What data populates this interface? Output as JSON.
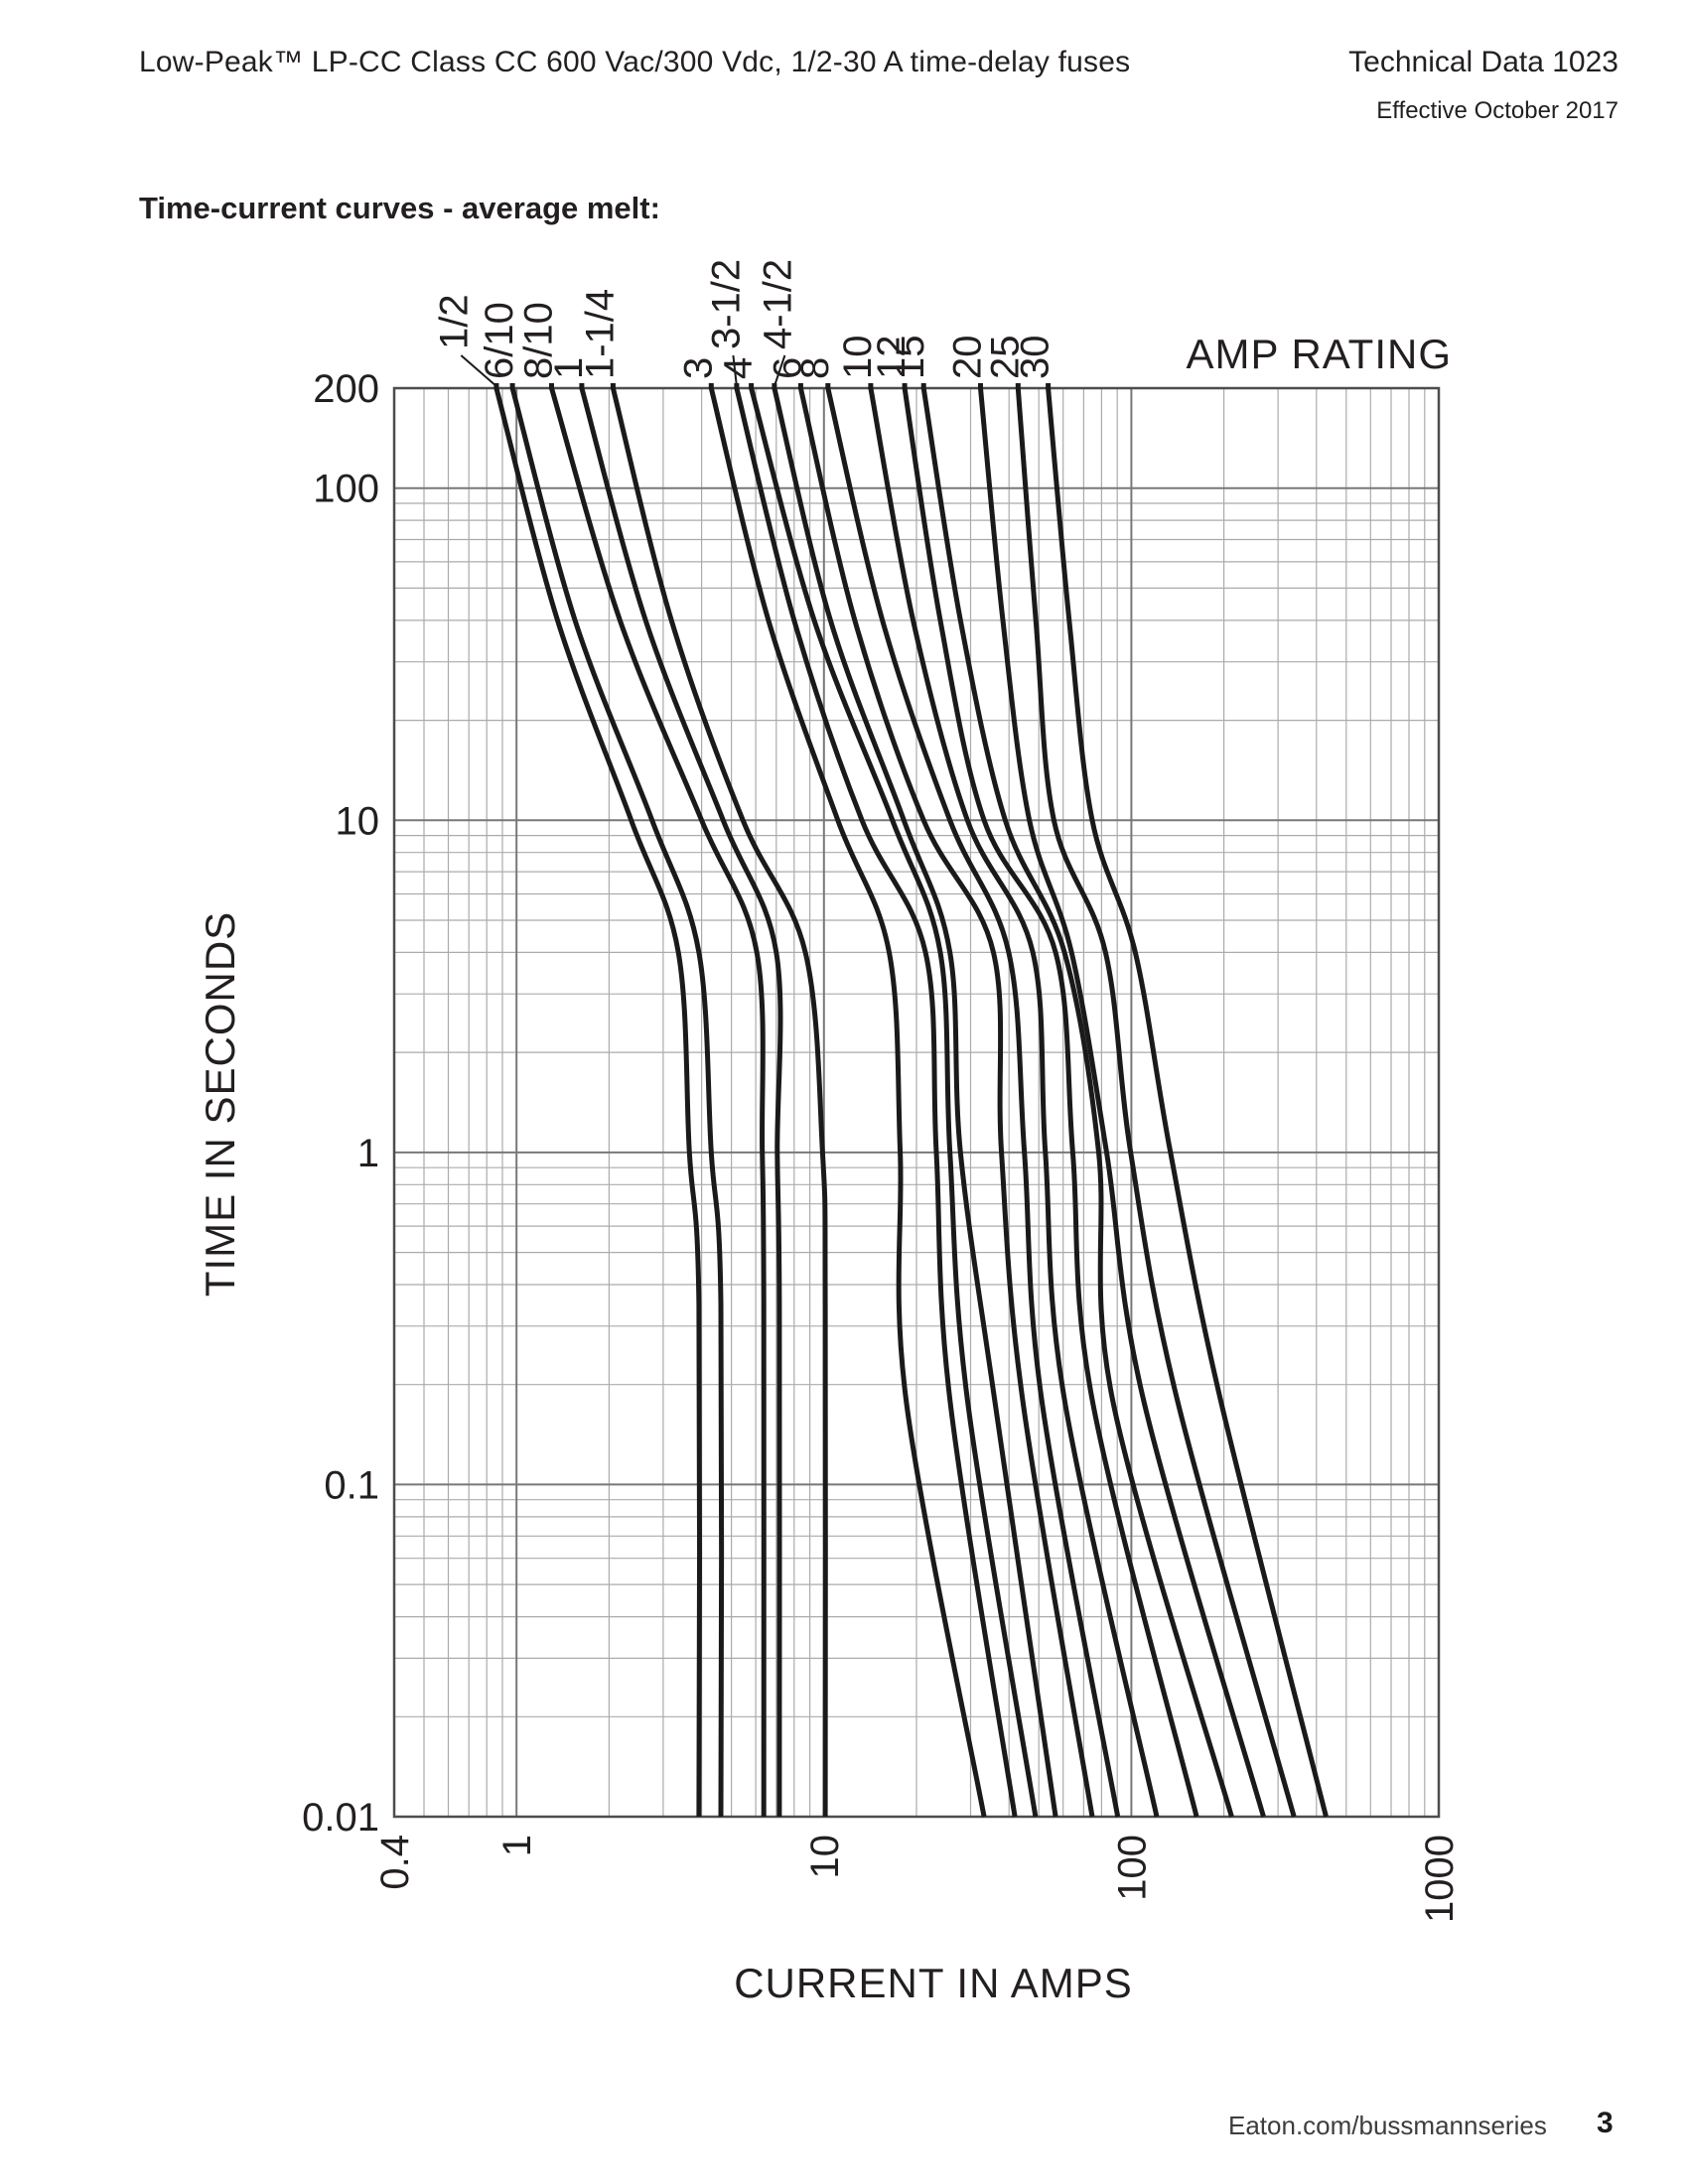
{
  "page": {
    "header_left": "Low-Peak™ LP-CC Class CC 600 Vac/300 Vdc, 1/2-30 A time-delay fuses",
    "header_right_line1": "Technical Data 1023",
    "header_right_line2": "Effective October 2017",
    "section_title": "Time-current curves - average melt:",
    "footer_link": "Eaton.com/bussmannseries",
    "footer_page": "3"
  },
  "colors": {
    "curve": "#1a1a1a",
    "grid_minor": "#ababab",
    "grid_major": "#787878",
    "frame": "#4d4d4d",
    "text": "#231f20"
  },
  "chart_data": {
    "type": "line",
    "title": "Time-current curves - average melt",
    "xlabel": "CURRENT IN AMPS",
    "ylabel": "TIME IN SECONDS",
    "legend_title": "AMP RATING",
    "x_scale": "log",
    "y_scale": "log",
    "xlim": [
      0.4,
      1000
    ],
    "ylim": [
      0.01,
      200
    ],
    "grid": true,
    "x_ticks": [
      0.4,
      1,
      10,
      100,
      1000
    ],
    "x_tick_labels": [
      "0.4",
      "1",
      "10",
      "100",
      "1000"
    ],
    "y_ticks": [
      200,
      100,
      10,
      1,
      0.1,
      0.01
    ],
    "y_tick_labels": [
      "200",
      "100",
      "10",
      "1",
      "0.1",
      "0.01"
    ],
    "series": [
      {
        "name": "1/2",
        "points": [
          [
            0.86,
            200
          ],
          [
            1.36,
            40
          ],
          [
            2.36,
            10
          ],
          [
            3.36,
            4
          ],
          [
            3.65,
            1
          ],
          [
            3.92,
            0.35
          ],
          [
            3.92,
            0.01
          ]
        ]
      },
      {
        "name": "6/10",
        "points": [
          [
            0.97,
            200
          ],
          [
            1.55,
            40
          ],
          [
            2.76,
            10
          ],
          [
            3.92,
            4
          ],
          [
            4.3,
            1
          ],
          [
            4.62,
            0.35
          ],
          [
            4.62,
            0.01
          ]
        ]
      },
      {
        "name": "8/10",
        "points": [
          [
            1.3,
            200
          ],
          [
            2.17,
            40
          ],
          [
            4.0,
            10
          ],
          [
            6.05,
            4
          ],
          [
            6.3,
            1
          ],
          [
            6.37,
            0.35
          ],
          [
            6.37,
            0.01
          ]
        ]
      },
      {
        "name": "1",
        "points": [
          [
            1.63,
            200
          ],
          [
            2.63,
            40
          ],
          [
            4.7,
            10
          ],
          [
            7.0,
            4
          ],
          [
            7.05,
            1
          ],
          [
            7.16,
            0.35
          ],
          [
            7.16,
            0.01
          ]
        ]
      },
      {
        "name": "1-1/4",
        "points": [
          [
            2.06,
            200
          ],
          [
            3.19,
            40
          ],
          [
            5.45,
            10
          ],
          [
            8.7,
            4
          ],
          [
            9.9,
            1
          ],
          [
            10.1,
            0.35
          ],
          [
            10.1,
            0.01
          ]
        ]
      },
      {
        "name": "3",
        "points": [
          [
            4.3,
            200
          ],
          [
            6.6,
            40
          ],
          [
            11.1,
            10
          ],
          [
            16.3,
            4
          ],
          [
            17.7,
            1
          ],
          [
            18.5,
            0.18
          ],
          [
            33.2,
            0.01
          ]
        ]
      },
      {
        "name": "3-1/2",
        "points": [
          [
            5.2,
            200
          ],
          [
            8.0,
            40
          ],
          [
            13.3,
            10
          ],
          [
            21.4,
            4
          ],
          [
            23.2,
            1
          ],
          [
            25.7,
            0.18
          ],
          [
            41.8,
            0.01
          ]
        ]
      },
      {
        "name": "4",
        "points": [
          [
            5.8,
            200
          ],
          [
            9.3,
            40
          ],
          [
            16.7,
            10
          ],
          [
            23.9,
            4
          ],
          [
            25.7,
            1
          ],
          [
            29.3,
            0.18
          ],
          [
            48.8,
            0.01
          ]
        ]
      },
      {
        "name": "4-1/2",
        "points": [
          [
            6.9,
            200
          ],
          [
            10.5,
            40
          ],
          [
            18.2,
            10
          ],
          [
            25.7,
            4
          ],
          [
            27.8,
            1
          ],
          [
            35.9,
            0.18
          ],
          [
            56.7,
            0.01
          ]
        ]
      },
      {
        "name": "6",
        "points": [
          [
            8.4,
            200
          ],
          [
            12.6,
            40
          ],
          [
            21.1,
            10
          ],
          [
            35.6,
            4
          ],
          [
            37.8,
            1
          ],
          [
            44.3,
            0.18
          ],
          [
            74.6,
            0.01
          ]
        ]
      },
      {
        "name": "8",
        "points": [
          [
            10.3,
            200
          ],
          [
            15.5,
            40
          ],
          [
            25.7,
            10
          ],
          [
            39.9,
            4
          ],
          [
            44.9,
            1
          ],
          [
            51.1,
            0.18
          ],
          [
            90.3,
            0.01
          ]
        ]
      },
      {
        "name": "10",
        "points": [
          [
            14.2,
            200
          ],
          [
            19.5,
            40
          ],
          [
            29.3,
            10
          ],
          [
            47.8,
            4
          ],
          [
            52.5,
            1
          ],
          [
            60.6,
            0.18
          ],
          [
            121,
            0.01
          ]
        ]
      },
      {
        "name": "12",
        "points": [
          [
            18.3,
            200
          ],
          [
            23.9,
            40
          ],
          [
            33.2,
            10
          ],
          [
            56.7,
            4
          ],
          [
            64.5,
            1
          ],
          [
            74.6,
            0.18
          ],
          [
            163,
            0.01
          ]
        ]
      },
      {
        "name": "15",
        "points": [
          [
            21.1,
            200
          ],
          [
            27.8,
            40
          ],
          [
            38.9,
            10
          ],
          [
            60.6,
            4
          ],
          [
            78.3,
            1
          ],
          [
            86.9,
            0.18
          ],
          [
            212,
            0.01
          ]
        ]
      },
      {
        "name": "20",
        "points": [
          [
            32.3,
            200
          ],
          [
            38.2,
            40
          ],
          [
            46.6,
            10
          ],
          [
            63.9,
            4
          ],
          [
            83.1,
            1
          ],
          [
            109.5,
            0.18
          ],
          [
            269,
            0.01
          ]
        ]
      },
      {
        "name": "25",
        "points": [
          [
            42.8,
            200
          ],
          [
            48.9,
            40
          ],
          [
            56.0,
            10
          ],
          [
            82.4,
            4
          ],
          [
            99.5,
            1
          ],
          [
            141,
            0.18
          ],
          [
            338,
            0.01
          ]
        ]
      },
      {
        "name": "30",
        "points": [
          [
            53.6,
            200
          ],
          [
            62.8,
            40
          ],
          [
            74.6,
            10
          ],
          [
            103,
            4
          ],
          [
            134,
            1
          ],
          [
            195,
            0.18
          ],
          [
            430,
            0.01
          ]
        ]
      }
    ],
    "amp_labels": [
      {
        "text": "1/2",
        "leader": true,
        "label_at": 0.69
      },
      {
        "text": "6/10"
      },
      {
        "text": "8/10"
      },
      {
        "text": "1"
      },
      {
        "text": "1-1/4"
      },
      {
        "text": "3"
      },
      {
        "text": "3-1/2",
        "leader": true,
        "label_at": 5.3
      },
      {
        "text": "4"
      },
      {
        "text": "4-1/2",
        "leader": true,
        "label_at": 7.8
      },
      {
        "text": "6"
      },
      {
        "text": "8"
      },
      {
        "text": "10"
      },
      {
        "text": "12"
      },
      {
        "text": "15"
      },
      {
        "text": "20"
      },
      {
        "text": "25"
      },
      {
        "text": "30"
      }
    ]
  }
}
